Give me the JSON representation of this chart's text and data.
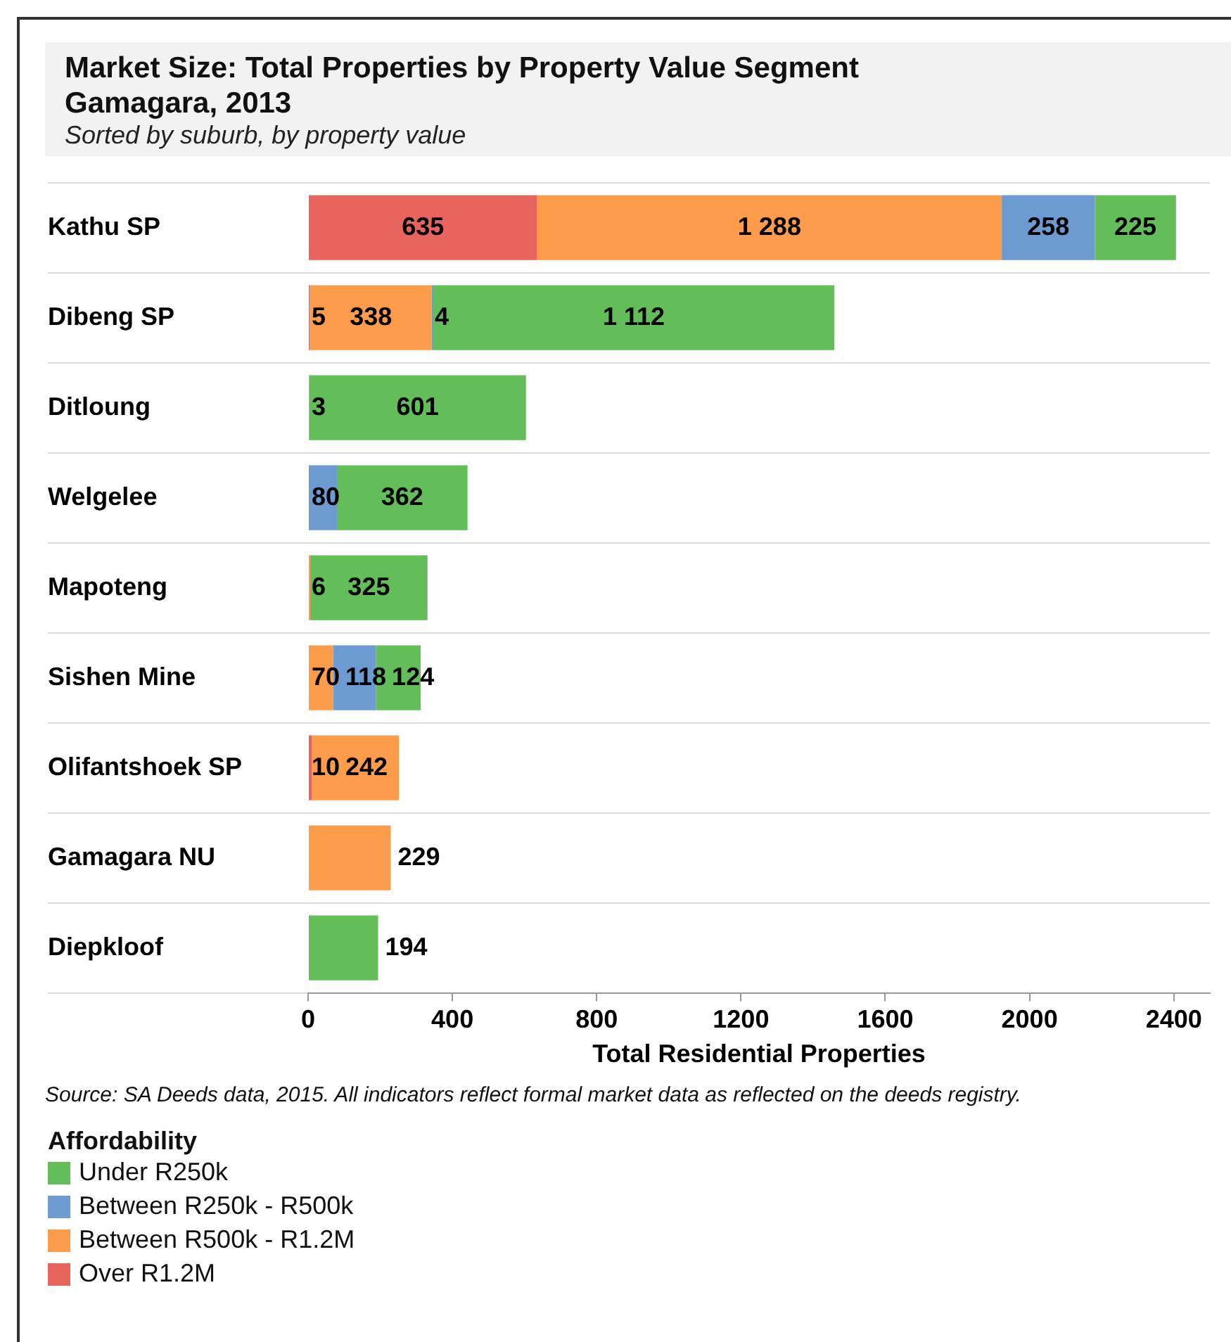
{
  "chart_data": {
    "type": "bar",
    "orientation": "horizontal",
    "stacked": true,
    "title": "Market Size: Total Properties by Property Value Segment\nGamagara, 2013",
    "subtitle": "Sorted by suburb, by property value",
    "xlabel": "Total Residential Properties",
    "categories": [
      "Kathu SP",
      "Dibeng SP",
      "Ditloung",
      "Welgelee",
      "Mapoteng",
      "Sishen Mine",
      "Olifantshoek SP",
      "Gamagara NU",
      "Diepkloof"
    ],
    "series": [
      {
        "name": "Over R1.2M",
        "color": "#e8655e",
        "values": [
          635,
          5,
          null,
          null,
          null,
          null,
          10,
          null,
          null
        ],
        "value_labels": [
          "635",
          "5",
          null,
          null,
          null,
          null,
          "10",
          null,
          null
        ]
      },
      {
        "name": "Between R500k - R1.2M",
        "color": "#fd9c4a",
        "values": [
          1288,
          338,
          null,
          null,
          6,
          70,
          242,
          229,
          null
        ],
        "value_labels": [
          "1 288",
          "338",
          null,
          null,
          "6",
          "70",
          "242",
          "229",
          null
        ]
      },
      {
        "name": "Between R250k - R500k",
        "color": "#6b9bd1",
        "values": [
          258,
          4,
          3,
          80,
          null,
          118,
          null,
          null,
          null
        ],
        "value_labels": [
          "258",
          "4",
          "3",
          "80",
          null,
          "118",
          null,
          null,
          null
        ]
      },
      {
        "name": "Under R250k",
        "color": "#63be5a",
        "values": [
          225,
          1112,
          601,
          362,
          325,
          124,
          null,
          null,
          194
        ],
        "value_labels": [
          "225",
          "1 112",
          "601",
          "362",
          "325",
          "124",
          null,
          null,
          "194"
        ]
      }
    ],
    "xlim": [
      0,
      2500
    ],
    "xticks": [
      0,
      400,
      800,
      1200,
      1600,
      2000,
      2400
    ],
    "grid": "y",
    "legend": "bottom",
    "legend_title": "Affordability",
    "annotations": [
      "Source: SA Deeds data, 2015. All indicators reflect formal market data as reflected on the deeds registry."
    ]
  }
}
